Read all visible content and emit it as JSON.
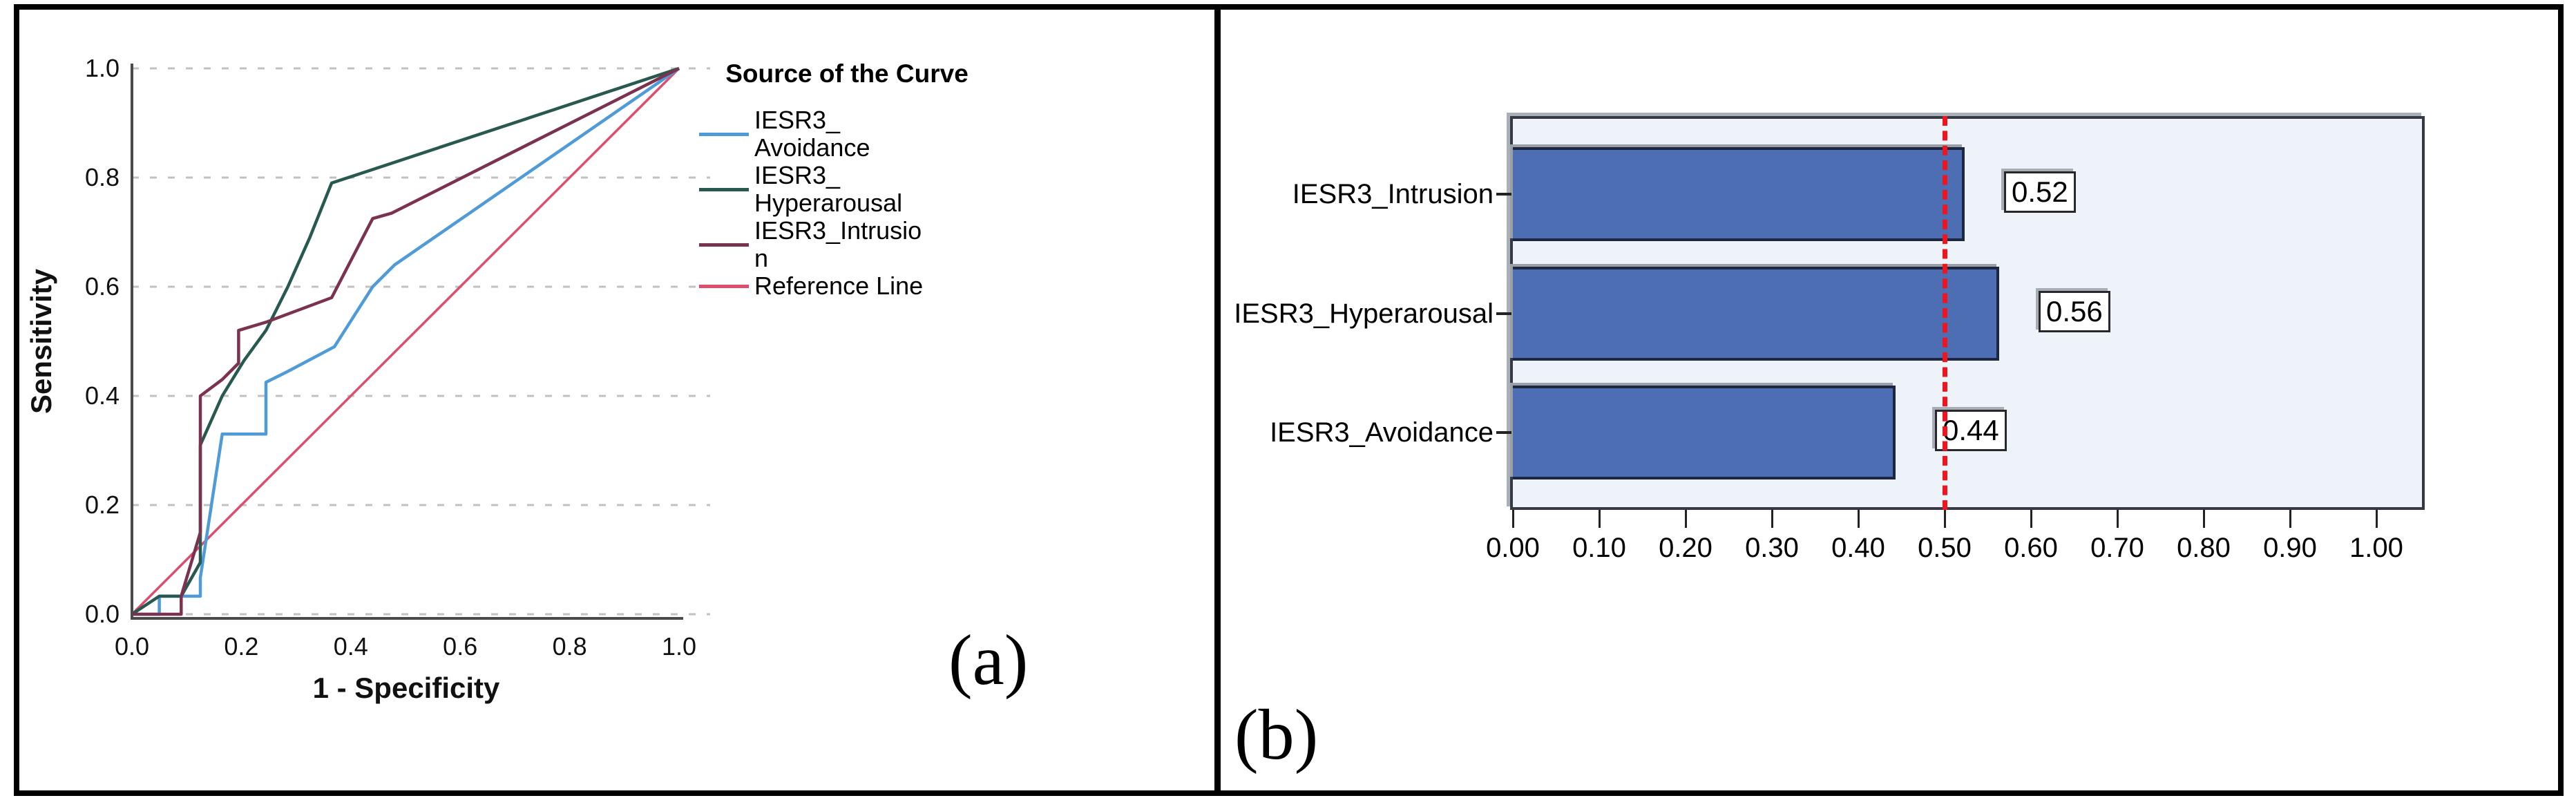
{
  "figure": {
    "panel_a_label": "(a)",
    "panel_b_label": "(b)"
  },
  "chart_data": [
    {
      "type": "line",
      "subtype": "roc-curve",
      "xlabel": "1 - Specificity",
      "ylabel": "Sensitivity",
      "xlim": [
        0,
        1
      ],
      "ylim": [
        0,
        1
      ],
      "xticks": [
        "0.0",
        "0.2",
        "0.4",
        "0.6",
        "0.8",
        "1.0"
      ],
      "yticks": [
        "0.0",
        "0.2",
        "0.4",
        "0.6",
        "0.8",
        "1.0"
      ],
      "grid": "horizontal-dashed",
      "legend_position": "right",
      "legend_title": "Source of the Curve",
      "legend_title_lines": [
        "Source of the",
        "Curve"
      ],
      "series": [
        {
          "name": "IESR3_Avoidance",
          "label_lines": "IESR3_\nAvoidance",
          "color": "#4F9BD7",
          "points": [
            [
              0,
              0
            ],
            [
              0.05,
              0
            ],
            [
              0.05,
              0.033
            ],
            [
              0.125,
              0.033
            ],
            [
              0.125,
              0.067
            ],
            [
              0.165,
              0.33
            ],
            [
              0.245,
              0.33
            ],
            [
              0.245,
              0.425
            ],
            [
              0.285,
              0.445
            ],
            [
              0.37,
              0.49
            ],
            [
              0.44,
              0.6
            ],
            [
              0.48,
              0.64
            ],
            [
              1,
              1
            ]
          ]
        },
        {
          "name": "IESR3_Hyperarousal",
          "label_lines": "IESR3_\nHyperarousal",
          "color": "#275950",
          "points": [
            [
              0,
              0
            ],
            [
              0.05,
              0.033
            ],
            [
              0.09,
              0.033
            ],
            [
              0.125,
              0.095
            ],
            [
              0.125,
              0.31
            ],
            [
              0.165,
              0.4
            ],
            [
              0.205,
              0.465
            ],
            [
              0.245,
              0.52
            ],
            [
              0.285,
              0.6
            ],
            [
              0.325,
              0.69
            ],
            [
              0.365,
              0.79
            ],
            [
              1,
              1
            ]
          ]
        },
        {
          "name": "IESR3_Intrusion",
          "label_lines": "IESR3_Intrusio\nn",
          "color": "#7B3150",
          "points": [
            [
              0,
              0
            ],
            [
              0.09,
              0
            ],
            [
              0.09,
              0.033
            ],
            [
              0.125,
              0.15
            ],
            [
              0.125,
              0.4
            ],
            [
              0.165,
              0.43
            ],
            [
              0.195,
              0.46
            ],
            [
              0.195,
              0.52
            ],
            [
              0.245,
              0.535
            ],
            [
              0.325,
              0.565
            ],
            [
              0.365,
              0.58
            ],
            [
              0.44,
              0.725
            ],
            [
              0.475,
              0.735
            ],
            [
              1,
              1
            ]
          ]
        },
        {
          "name": "Reference Line",
          "label_lines": "Reference Line",
          "color": "#DD4E6C",
          "points": [
            [
              0,
              0
            ],
            [
              1,
              1
            ]
          ]
        }
      ]
    },
    {
      "type": "bar",
      "orientation": "horizontal",
      "categories": [
        "IESR3_Intrusion",
        "IESR3_Hyperarousal",
        "IESR3_Avoidance"
      ],
      "values": [
        0.52,
        0.56,
        0.44
      ],
      "value_labels": [
        "0.52",
        "0.56",
        "0.44"
      ],
      "reference_line_x": 0.5,
      "xlim": [
        0,
        1.05
      ],
      "xticks": [
        "0.00",
        "0.10",
        "0.20",
        "0.30",
        "0.40",
        "0.50",
        "0.60",
        "0.70",
        "0.80",
        "0.90",
        "1.00"
      ],
      "xtick_values": [
        0,
        0.1,
        0.2,
        0.3,
        0.4,
        0.5,
        0.6,
        0.7,
        0.8,
        0.9,
        1.0
      ],
      "bar_color": "#4D6EB2",
      "bar_border_color": "#1D2740",
      "plot_background": "#EDF3F9",
      "reference_line_color": "#F0141E"
    }
  ]
}
